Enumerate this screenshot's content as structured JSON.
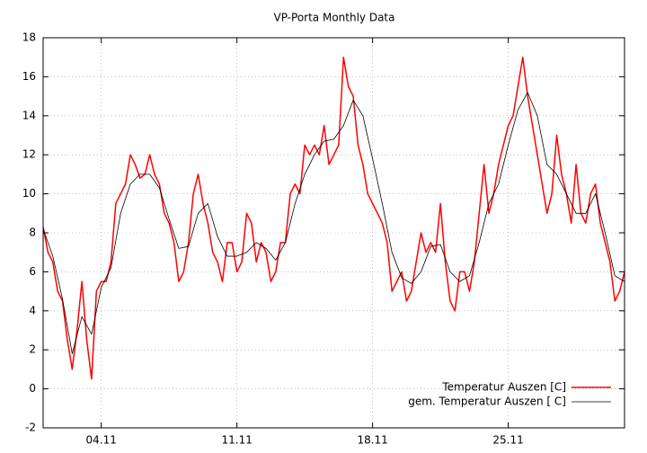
{
  "chart_data": {
    "type": "line",
    "title": "VP-Porta Monthly Data",
    "xlim": [
      0,
      30
    ],
    "xticks": [
      {
        "value": 3,
        "label": "04.11"
      },
      {
        "value": 10,
        "label": "11.11"
      },
      {
        "value": 17,
        "label": "18.11"
      },
      {
        "value": 24,
        "label": "25.11"
      }
    ],
    "ylim": [
      -2,
      18
    ],
    "yticks": [
      -2,
      0,
      2,
      4,
      6,
      8,
      10,
      12,
      14,
      16,
      18
    ],
    "grid": true,
    "legend": "bottom-right",
    "series": [
      {
        "name": "Temperatur Auszen [C]",
        "color": "#ff0000",
        "width": 1.5,
        "x": [
          0,
          0.25,
          0.5,
          0.75,
          1,
          1.25,
          1.5,
          1.75,
          2,
          2.25,
          2.5,
          2.75,
          3,
          3.25,
          3.5,
          3.75,
          4,
          4.25,
          4.5,
          4.75,
          5,
          5.25,
          5.5,
          5.75,
          6,
          6.25,
          6.5,
          6.75,
          7,
          7.25,
          7.5,
          7.75,
          8,
          8.25,
          8.5,
          8.75,
          9,
          9.25,
          9.5,
          9.75,
          10,
          10.25,
          10.5,
          10.75,
          11,
          11.25,
          11.5,
          11.75,
          12,
          12.25,
          12.5,
          12.75,
          13,
          13.25,
          13.5,
          13.75,
          14,
          14.25,
          14.5,
          14.75,
          15,
          15.25,
          15.5,
          15.75,
          16,
          16.25,
          16.5,
          16.75,
          17,
          17.25,
          17.5,
          17.75,
          18,
          18.25,
          18.5,
          18.75,
          19,
          19.25,
          19.5,
          19.75,
          20,
          20.25,
          20.5,
          20.75,
          21,
          21.25,
          21.5,
          21.75,
          22,
          22.25,
          22.5,
          22.75,
          23,
          23.25,
          23.5,
          23.75,
          24,
          24.25,
          24.5,
          24.75,
          25,
          25.25,
          25.5,
          25.75,
          26,
          26.25,
          26.5,
          26.75,
          27,
          27.25,
          27.5,
          27.75,
          28,
          28.25,
          28.5,
          28.75,
          29,
          29.25,
          29.5,
          29.75,
          30
        ],
        "values": [
          8.3,
          7.0,
          6.5,
          5.0,
          4.5,
          2.5,
          1.0,
          3.0,
          5.5,
          2.5,
          0.5,
          5.0,
          5.5,
          5.5,
          6.5,
          9.5,
          10.0,
          10.5,
          12.0,
          11.5,
          10.8,
          11.0,
          12.0,
          11.0,
          10.5,
          9.0,
          8.5,
          7.5,
          5.5,
          6.0,
          7.5,
          10.0,
          11.0,
          9.5,
          8.5,
          7.0,
          6.5,
          5.5,
          7.5,
          7.5,
          6.0,
          6.5,
          9.0,
          8.5,
          6.5,
          7.5,
          7.0,
          5.5,
          6.0,
          7.5,
          7.5,
          10.0,
          10.5,
          10.0,
          12.5,
          12.0,
          12.5,
          12.0,
          13.5,
          11.5,
          12.0,
          12.5,
          17.0,
          15.5,
          15.0,
          12.5,
          11.5,
          10.0,
          9.5,
          9.0,
          8.5,
          7.5,
          5.0,
          5.5,
          6.0,
          4.5,
          5.0,
          6.5,
          8.0,
          7.0,
          7.5,
          7.0,
          9.5,
          6.5,
          4.5,
          4.0,
          6.0,
          6.0,
          5.0,
          6.5,
          9.0,
          11.5,
          9.0,
          10.0,
          11.5,
          12.5,
          13.5,
          14.0,
          15.5,
          17.0,
          15.0,
          13.5,
          12.0,
          10.5,
          9.0,
          10.0,
          13.0,
          11.0,
          10.0,
          8.5,
          11.5,
          9.0,
          8.5,
          10.0,
          10.5,
          8.5,
          7.5,
          6.5,
          4.5,
          5.0,
          6.0
        ]
      },
      {
        "name": "gem. Temperatur Auszen [ C]",
        "color": "#000000",
        "width": 0.8,
        "x": [
          0,
          0.5,
          1,
          1.5,
          2,
          2.5,
          3,
          3.5,
          4,
          4.5,
          5,
          5.5,
          6,
          6.5,
          7,
          7.5,
          8,
          8.5,
          9,
          9.5,
          10,
          10.5,
          11,
          11.5,
          12,
          12.5,
          13,
          13.5,
          14,
          14.5,
          15,
          15.5,
          16,
          16.5,
          17,
          17.5,
          18,
          18.5,
          19,
          19.5,
          20,
          20.5,
          21,
          21.5,
          22,
          22.5,
          23,
          23.5,
          24,
          24.5,
          25,
          25.5,
          26,
          26.5,
          27,
          27.5,
          28,
          28.5,
          29,
          29.5,
          30
        ],
        "values": [
          8.2,
          6.8,
          4.6,
          1.8,
          3.7,
          2.8,
          5.2,
          6.2,
          9.0,
          10.5,
          11.0,
          11.0,
          10.3,
          8.7,
          7.2,
          7.3,
          9.0,
          9.5,
          7.8,
          6.8,
          6.8,
          7.0,
          7.5,
          7.2,
          6.6,
          7.5,
          9.5,
          11.0,
          12.0,
          12.7,
          12.8,
          13.5,
          14.8,
          14.0,
          11.8,
          9.5,
          7.0,
          5.7,
          5.4,
          6.0,
          7.3,
          7.4,
          6.0,
          5.5,
          5.8,
          7.5,
          9.5,
          10.5,
          12.5,
          14.3,
          15.2,
          14.0,
          11.5,
          11.0,
          10.0,
          9.0,
          9.0,
          10.0,
          8.0,
          5.8,
          5.5
        ]
      }
    ]
  }
}
